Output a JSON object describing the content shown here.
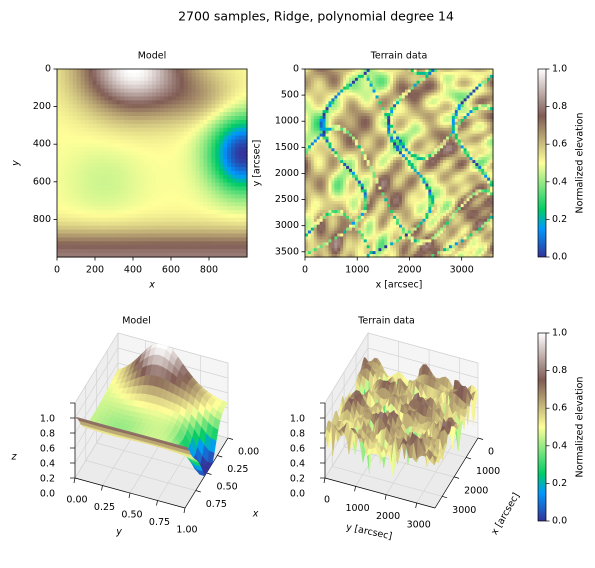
{
  "title": "2700 samples, Ridge, polynomial degree 14",
  "chart_data": [
    {
      "type": "heatmap",
      "title": "Model",
      "xlabel": "x",
      "ylabel": "y",
      "xlim": [
        0,
        1000
      ],
      "xticks": [
        0,
        200,
        400,
        600,
        800
      ],
      "ylim": [
        1000,
        0
      ],
      "yticks": [
        0,
        200,
        400,
        600,
        800
      ]
    },
    {
      "type": "heatmap",
      "title": "Terrain data",
      "xlabel": "x [arcsec]",
      "ylabel": "y [arcsec]",
      "xlim": [
        0,
        3600
      ],
      "xticks": [
        0,
        1000,
        2000,
        3000
      ],
      "ylim": [
        3600,
        0
      ],
      "yticks": [
        0,
        500,
        1000,
        1500,
        2000,
        2500,
        3000,
        3500
      ],
      "colorbar": {
        "label": "Normalized elevation",
        "lim": [
          0,
          1
        ],
        "ticks": [
          {
            "value": 0,
            "label": "0.0"
          },
          {
            "value": 0.2,
            "label": "0.2"
          },
          {
            "value": 0.4,
            "label": "0.4"
          },
          {
            "value": 0.6,
            "label": "0.6"
          },
          {
            "value": 0.8,
            "label": "0.8"
          },
          {
            "value": 1,
            "label": "1.0"
          }
        ]
      }
    },
    {
      "type": "surface",
      "title": "Model",
      "xlabel": "x",
      "ylabel": "y",
      "zlabel": "z",
      "xlim": [
        0,
        1
      ],
      "xticks": [
        {
          "value": 0,
          "label": "0.00"
        },
        {
          "value": 0.25,
          "label": "0.25"
        },
        {
          "value": 0.5,
          "label": "0.50"
        },
        {
          "value": 0.75,
          "label": "0.75"
        }
      ],
      "ylim": [
        0,
        1
      ],
      "yticks": [
        {
          "value": 0,
          "label": "0.00"
        },
        {
          "value": 0.25,
          "label": "0.25"
        },
        {
          "value": 0.5,
          "label": "0.50"
        },
        {
          "value": 0.75,
          "label": "0.75"
        },
        {
          "value": 1,
          "label": "1.00"
        }
      ],
      "zlim": [
        0,
        1
      ],
      "zticks": [
        {
          "value": 0,
          "label": "0.0"
        },
        {
          "value": 0.2,
          "label": "0.2"
        },
        {
          "value": 0.4,
          "label": "0.4"
        },
        {
          "value": 0.6,
          "label": "0.6"
        },
        {
          "value": 0.8,
          "label": "0.8"
        },
        {
          "value": 1,
          "label": "1.0"
        }
      ]
    },
    {
      "type": "surface",
      "title": "Terrain data",
      "xlabel": "x [arcsec]",
      "ylabel": "y [arcsec]",
      "xlim": [
        0,
        3600
      ],
      "xticks": [
        0,
        1000,
        2000,
        3000
      ],
      "ylim": [
        0,
        3600
      ],
      "yticks": [
        0,
        1000,
        2000,
        3000
      ],
      "zlim": [
        0,
        1
      ],
      "zticks": [
        {
          "value": 0,
          "label": "0.0"
        },
        {
          "value": 0.2,
          "label": "0.2"
        },
        {
          "value": 0.4,
          "label": "0.4"
        },
        {
          "value": 0.6,
          "label": "0.6"
        },
        {
          "value": 0.8,
          "label": "0.8"
        },
        {
          "value": 1,
          "label": "1.0"
        }
      ],
      "colorbar": {
        "label": "Normalized elevation",
        "lim": [
          0,
          1
        ],
        "ticks": [
          {
            "value": 0,
            "label": "0.0"
          },
          {
            "value": 0.2,
            "label": "0.2"
          },
          {
            "value": 0.4,
            "label": "0.4"
          },
          {
            "value": 0.6,
            "label": "0.6"
          },
          {
            "value": 0.8,
            "label": "0.8"
          },
          {
            "value": 1,
            "label": "1.0"
          }
        ]
      }
    }
  ]
}
